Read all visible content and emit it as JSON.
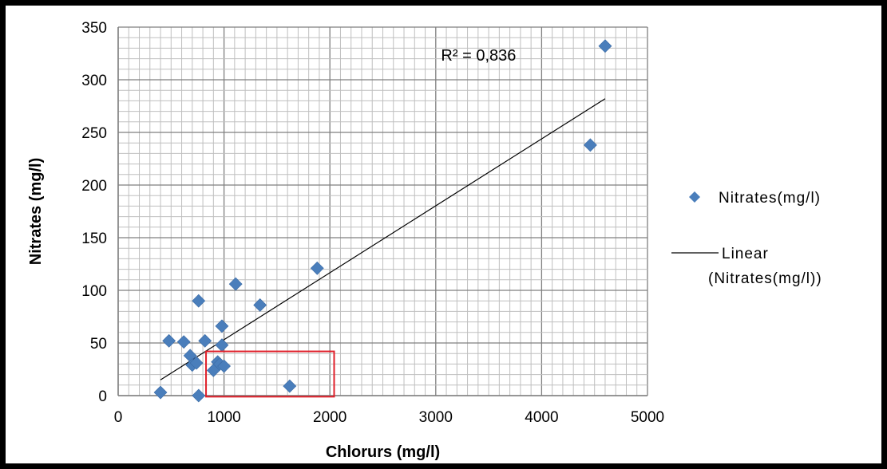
{
  "chart_data": {
    "type": "scatter",
    "xlabel": "Chlorurs (mg/l)",
    "ylabel": "Nitrates (mg/l)",
    "xlim": [
      0,
      5000
    ],
    "ylim": [
      0,
      350
    ],
    "x_ticks": [
      0,
      1000,
      2000,
      3000,
      4000,
      5000
    ],
    "y_ticks": [
      0,
      50,
      100,
      150,
      200,
      250,
      300,
      350
    ],
    "grid": true,
    "legend_position": "right",
    "series": [
      {
        "name": "Nitrates(mg/l)",
        "marker": "diamond",
        "color": "#4a7ebb",
        "points": [
          {
            "x": 400,
            "y": 3
          },
          {
            "x": 480,
            "y": 52
          },
          {
            "x": 620,
            "y": 51
          },
          {
            "x": 680,
            "y": 38
          },
          {
            "x": 700,
            "y": 29
          },
          {
            "x": 740,
            "y": 31
          },
          {
            "x": 760,
            "y": 90
          },
          {
            "x": 760,
            "y": 0
          },
          {
            "x": 820,
            "y": 52
          },
          {
            "x": 900,
            "y": 24
          },
          {
            "x": 940,
            "y": 32
          },
          {
            "x": 960,
            "y": 30
          },
          {
            "x": 980,
            "y": 48
          },
          {
            "x": 980,
            "y": 66
          },
          {
            "x": 1000,
            "y": 28
          },
          {
            "x": 1110,
            "y": 106
          },
          {
            "x": 1340,
            "y": 86
          },
          {
            "x": 1620,
            "y": 9
          },
          {
            "x": 1880,
            "y": 121
          },
          {
            "x": 4460,
            "y": 238
          },
          {
            "x": 4600,
            "y": 332
          }
        ]
      },
      {
        "name": "Linear (Nitrates(mg/l))",
        "name_lines": [
          "Linear",
          "(Nitrates(mg/l))"
        ],
        "type": "trendline",
        "color": "#000000",
        "x": [
          400,
          4600
        ],
        "y": [
          15,
          282
        ]
      }
    ],
    "annotations": [
      {
        "text": "R² = 0,836",
        "x": 3050,
        "y": 318
      }
    ],
    "highlight_box": {
      "color": "#e0202a",
      "x_range": [
        830,
        2040
      ],
      "y_range": [
        -1,
        42
      ]
    }
  }
}
